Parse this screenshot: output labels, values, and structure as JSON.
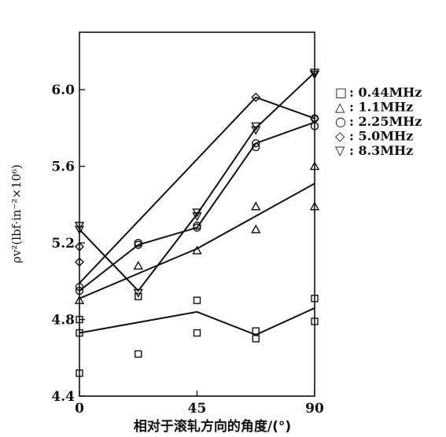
{
  "chart_data": {
    "type": "scatter",
    "xlabel": "相对于滚轧方向的角度/(°)",
    "ylabel": "ρv²(lbf·in⁻²×10⁶)",
    "xlim": [
      0,
      90
    ],
    "ylim": [
      4.4,
      6.3
    ],
    "xticks": [
      "0",
      "45",
      "90"
    ],
    "yticks": [
      "4.4",
      "4.8",
      "5.2",
      "5.6",
      "6.0"
    ],
    "legend_position": "top-right",
    "series": [
      {
        "name": "0.44MHz",
        "marker": "square",
        "points": [
          [
            0,
            4.52
          ],
          [
            0,
            4.73
          ],
          [
            0,
            4.8
          ],
          [
            22.5,
            4.62
          ],
          [
            22.5,
            4.92
          ],
          [
            45,
            4.73
          ],
          [
            45,
            4.9
          ],
          [
            67.5,
            4.7
          ],
          [
            67.5,
            4.74
          ],
          [
            90,
            4.79
          ],
          [
            90,
            4.91
          ]
        ],
        "line": [
          [
            0,
            4.73
          ],
          [
            45,
            4.84
          ],
          [
            67.5,
            4.72
          ],
          [
            90,
            4.86
          ]
        ]
      },
      {
        "name": "1.1MHz",
        "marker": "triangle-up",
        "points": [
          [
            0,
            4.9
          ],
          [
            22.5,
            5.08
          ],
          [
            45,
            5.16
          ],
          [
            67.5,
            5.27
          ],
          [
            67.5,
            5.39
          ],
          [
            90,
            5.39
          ],
          [
            90,
            5.6
          ]
        ],
        "line": [
          [
            0,
            4.91
          ],
          [
            45,
            5.17
          ],
          [
            90,
            5.51
          ]
        ]
      },
      {
        "name": "2.25MHz",
        "marker": "circle",
        "points": [
          [
            0,
            4.95
          ],
          [
            0,
            4.97
          ],
          [
            22.5,
            5.19
          ],
          [
            22.5,
            5.2
          ],
          [
            45,
            5.28
          ],
          [
            45,
            5.29
          ],
          [
            67.5,
            5.7
          ],
          [
            67.5,
            5.72
          ],
          [
            90,
            5.81
          ],
          [
            90,
            5.85
          ]
        ],
        "line": [
          [
            0,
            4.95
          ],
          [
            22.5,
            5.19
          ],
          [
            45,
            5.28
          ],
          [
            67.5,
            5.72
          ],
          [
            90,
            5.83
          ]
        ]
      },
      {
        "name": "5.0MHz",
        "marker": "diamond",
        "points": [
          [
            0,
            5.1
          ],
          [
            0,
            5.18
          ],
          [
            67.5,
            5.96
          ],
          [
            90,
            5.85
          ]
        ],
        "line": [
          [
            0,
            4.99
          ],
          [
            67.5,
            5.96
          ],
          [
            90,
            5.85
          ]
        ]
      },
      {
        "name": "8.3MHz",
        "marker": "triangle-down",
        "points": [
          [
            0,
            5.27
          ],
          [
            0,
            5.29
          ],
          [
            22.5,
            4.94
          ],
          [
            45,
            5.34
          ],
          [
            45,
            5.36
          ],
          [
            67.5,
            5.79
          ],
          [
            67.5,
            5.81
          ],
          [
            90,
            6.08
          ],
          [
            90,
            6.09
          ]
        ],
        "line": [
          [
            0,
            5.27
          ],
          [
            22.5,
            4.95
          ],
          [
            45,
            5.35
          ],
          [
            67.5,
            5.8
          ],
          [
            90,
            6.09
          ]
        ]
      }
    ],
    "legend": [
      {
        "symbol": "□",
        "label": ": 0.44MHz"
      },
      {
        "symbol": "△",
        "label": ": 1.1MHz"
      },
      {
        "symbol": "○",
        "label": ": 2.25MHz"
      },
      {
        "symbol": "◇",
        "label": ": 5.0MHz"
      },
      {
        "symbol": "▽",
        "label": ": 8.3MHz"
      }
    ]
  }
}
